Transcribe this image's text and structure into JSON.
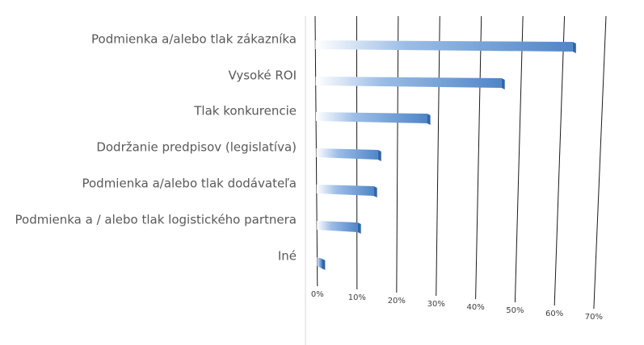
{
  "chart_data": {
    "type": "bar",
    "orientation": "horizontal",
    "categories": [
      "Podmienka a/alebo tlak zákazníka",
      "Vysoké ROI",
      "Tlak konkurencie",
      "Dodržanie predpisov (legislatíva)",
      "Podmienka a/alebo tlak dodávateľa",
      "Podmienka a / alebo tlak logistického partnera",
      "Iné"
    ],
    "values": [
      63,
      46,
      28,
      16,
      15,
      11,
      2
    ],
    "color": "#5b8fd0",
    "xlim": [
      0,
      70
    ],
    "xticks": [
      {
        "value": 0,
        "label": "0%"
      },
      {
        "value": 10,
        "label": "10%"
      },
      {
        "value": 20,
        "label": "20%"
      },
      {
        "value": 30,
        "label": "30%"
      },
      {
        "value": 40,
        "label": "40%"
      },
      {
        "value": 50,
        "label": "50%"
      },
      {
        "value": 60,
        "label": "60%"
      },
      {
        "value": 70,
        "label": "70%"
      }
    ],
    "grid": true
  }
}
